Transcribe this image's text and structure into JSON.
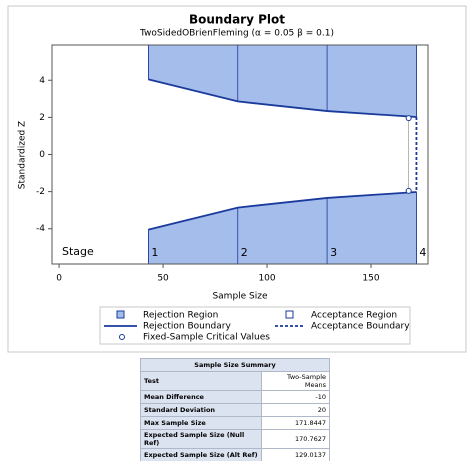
{
  "chart_data": {
    "type": "boundary",
    "title": "Boundary Plot",
    "subtitle": "TwoSidedOBrienFleming (α = 0.05  β = 0.1)",
    "x_label": "Sample Size",
    "y_label": "Standardized Z",
    "stage_label": "Stage",
    "stages": [
      "1",
      "2",
      "3",
      "4"
    ],
    "x": [
      42.96,
      85.92,
      128.88,
      171.84
    ],
    "upper": [
      4.05,
      2.86,
      2.34,
      2.02
    ],
    "lower": [
      -4.05,
      -2.86,
      -2.34,
      -2.02
    ],
    "xlim": [
      -3.4,
      177.4
    ],
    "ylim": [
      -5.9,
      5.9
    ],
    "xticks": [
      0,
      50,
      100,
      150
    ],
    "yticks": [
      -4,
      -2,
      0,
      2,
      4
    ],
    "rejection_region": {
      "name": "Rejection Region",
      "color": "#a4bdeb"
    },
    "acceptance_region": {
      "name": "Acceptance Region",
      "color": "#ffffff"
    },
    "rejection_boundary": {
      "name": "Rejection Boundary",
      "color": "#1a3a9c"
    },
    "acceptance_boundary": {
      "name": "Acceptance Boundary",
      "color": "#1a3a9c"
    },
    "fixed_sample": {
      "name": "Fixed-Sample Critical Values",
      "x": 168.1,
      "values": [
        1.96,
        -1.96
      ],
      "color": "#1a3a9c"
    }
  },
  "table": {
    "title": "Sample Size Summary",
    "rows": [
      [
        "Test",
        "Two-Sample Means"
      ],
      [
        "Mean Difference",
        "-10"
      ],
      [
        "Standard Deviation",
        "20"
      ],
      [
        "Max Sample Size",
        "171.8447"
      ],
      [
        "Expected Sample Size (Null Ref)",
        "170.7627"
      ],
      [
        "Expected Sample Size (Alt Ref)",
        "129.0137"
      ]
    ]
  }
}
